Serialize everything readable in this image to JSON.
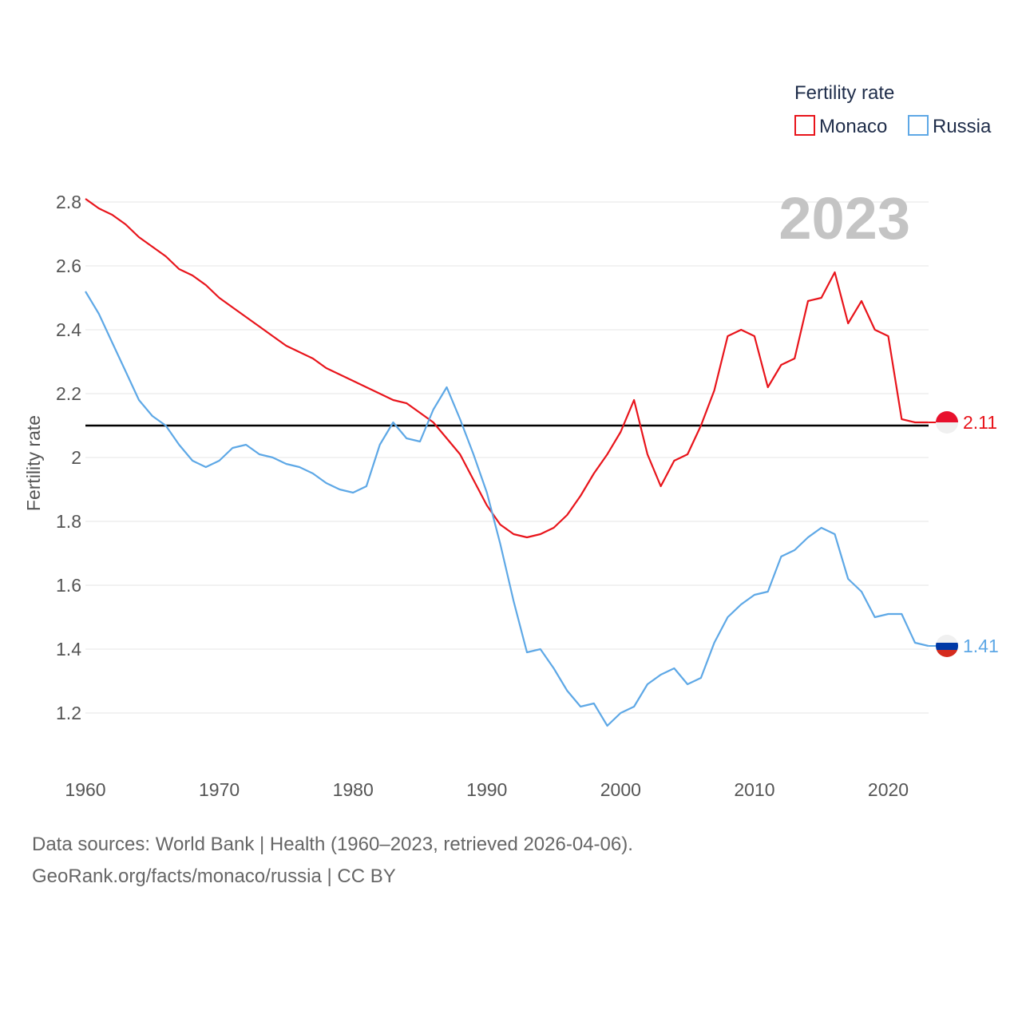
{
  "chart_data": {
    "type": "line",
    "title": "",
    "year_label": "2023",
    "legend_title": "Fertility rate",
    "ylabel": "Fertility rate",
    "xlabel": "",
    "ylim": [
      1.05,
      2.85
    ],
    "xlim": [
      1960,
      2023
    ],
    "y_ticks": [
      1.2,
      1.4,
      1.6,
      1.8,
      2,
      2.2,
      2.4,
      2.6,
      2.8
    ],
    "y_tick_labels": [
      "1.2",
      "1.4",
      "1.6",
      "1.8",
      "2",
      "2.2",
      "2.4",
      "2.6",
      "2.8"
    ],
    "x_ticks": [
      1960,
      1970,
      1980,
      1990,
      2000,
      2010,
      2020
    ],
    "x_tick_labels": [
      "1960",
      "1970",
      "1980",
      "1990",
      "2000",
      "2010",
      "2020"
    ],
    "reference_line": 2.1,
    "x": [
      1960,
      1961,
      1962,
      1963,
      1964,
      1965,
      1966,
      1967,
      1968,
      1969,
      1970,
      1971,
      1972,
      1973,
      1974,
      1975,
      1976,
      1977,
      1978,
      1979,
      1980,
      1981,
      1982,
      1983,
      1984,
      1985,
      1986,
      1987,
      1988,
      1989,
      1990,
      1991,
      1992,
      1993,
      1994,
      1995,
      1996,
      1997,
      1998,
      1999,
      2000,
      2001,
      2002,
      2003,
      2004,
      2005,
      2006,
      2007,
      2008,
      2009,
      2010,
      2011,
      2012,
      2013,
      2014,
      2015,
      2016,
      2017,
      2018,
      2019,
      2020,
      2021,
      2022,
      2023
    ],
    "series": [
      {
        "name": "Monaco",
        "color": "#e8141b",
        "end_value_label": "2.11",
        "values": [
          2.81,
          2.78,
          2.76,
          2.73,
          2.69,
          2.66,
          2.63,
          2.59,
          2.57,
          2.54,
          2.5,
          2.47,
          2.44,
          2.41,
          2.38,
          2.35,
          2.33,
          2.31,
          2.28,
          2.26,
          2.24,
          2.22,
          2.2,
          2.18,
          2.17,
          2.14,
          2.11,
          2.06,
          2.01,
          1.93,
          1.85,
          1.79,
          1.76,
          1.75,
          1.76,
          1.78,
          1.82,
          1.88,
          1.95,
          2.01,
          2.08,
          2.18,
          2.01,
          1.91,
          1.99,
          2.01,
          2.1,
          2.21,
          2.38,
          2.4,
          2.38,
          2.22,
          2.29,
          2.31,
          2.49,
          2.5,
          2.58,
          2.42,
          2.49,
          2.4,
          2.38,
          2.12,
          2.11,
          2.11
        ]
      },
      {
        "name": "Russia",
        "color": "#5ea8e6",
        "end_value_label": "1.41",
        "values": [
          2.52,
          2.45,
          2.36,
          2.27,
          2.18,
          2.13,
          2.1,
          2.04,
          1.99,
          1.97,
          1.99,
          2.03,
          2.04,
          2.01,
          2.0,
          1.98,
          1.97,
          1.95,
          1.92,
          1.9,
          1.89,
          1.91,
          2.04,
          2.11,
          2.06,
          2.05,
          2.15,
          2.22,
          2.12,
          2.01,
          1.89,
          1.73,
          1.55,
          1.39,
          1.4,
          1.34,
          1.27,
          1.22,
          1.23,
          1.16,
          1.2,
          1.22,
          1.29,
          1.32,
          1.34,
          1.29,
          1.31,
          1.42,
          1.5,
          1.54,
          1.57,
          1.58,
          1.69,
          1.71,
          1.75,
          1.78,
          1.76,
          1.62,
          1.58,
          1.5,
          1.51,
          1.51,
          1.42,
          1.41
        ]
      }
    ]
  },
  "footer": {
    "source_line": "Data sources: World Bank | Health (1960–2023, retrieved 2026-04-06).",
    "credit_line": "GeoRank.org/facts/monaco/russia | CC BY"
  }
}
